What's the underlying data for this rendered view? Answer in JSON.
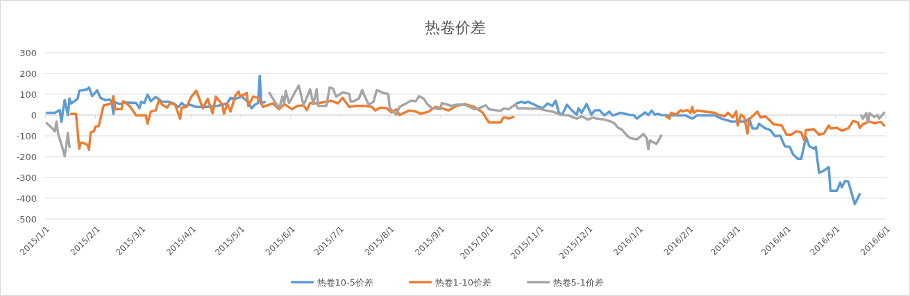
{
  "chart_data": {
    "type": "line",
    "title": "热卷价差",
    "grid": "y",
    "legend": "bottom",
    "line_style": "solid",
    "marker": "none",
    "xlim": [
      "2015-01-01",
      "2016-06-01"
    ],
    "xticks": [
      {
        "value": "2015-01-01",
        "label": "2015/1/1"
      },
      {
        "value": "2015-02-01",
        "label": "2015/2/1"
      },
      {
        "value": "2015-03-01",
        "label": "2015/3/1"
      },
      {
        "value": "2015-04-01",
        "label": "2015/4/1"
      },
      {
        "value": "2015-05-01",
        "label": "2015/5/1"
      },
      {
        "value": "2015-06-01",
        "label": "2015/6/1"
      },
      {
        "value": "2015-07-01",
        "label": "2015/7/1"
      },
      {
        "value": "2015-08-01",
        "label": "2015/8/1"
      },
      {
        "value": "2015-09-01",
        "label": "2015/9/1"
      },
      {
        "value": "2015-10-01",
        "label": "2015/10/1"
      },
      {
        "value": "2015-11-01",
        "label": "2015/11/1"
      },
      {
        "value": "2015-12-01",
        "label": "2015/12/1"
      },
      {
        "value": "2016-01-01",
        "label": "2016/1/1"
      },
      {
        "value": "2016-02-01",
        "label": "2016/2/1"
      },
      {
        "value": "2016-03-01",
        "label": "2016/3/1"
      },
      {
        "value": "2016-04-01",
        "label": "2016/4/1"
      },
      {
        "value": "2016-05-01",
        "label": "2016/5/1"
      },
      {
        "value": "2016-06-01",
        "label": "2016/6/1"
      }
    ],
    "ylim": [
      -500,
      300
    ],
    "yticks": [
      -500,
      -400,
      -300,
      -200,
      -100,
      0,
      100,
      200,
      300
    ],
    "series": [
      {
        "name": "热卷10-5价差",
        "color": "#5b9bd5",
        "x": [
          "2015-01-02",
          "2015-01-07",
          "2015-01-10",
          "2015-01-11",
          "2015-01-13",
          "2015-01-15",
          "2015-01-16",
          "2015-01-17",
          "2015-01-21",
          "2015-01-22",
          "2015-01-24",
          "2015-01-27",
          "2015-01-28",
          "2015-01-30",
          "2015-02-02",
          "2015-02-04",
          "2015-02-07",
          "2015-02-10",
          "2015-02-11",
          "2015-02-12",
          "2015-02-13",
          "2015-02-16",
          "2015-02-19",
          "2015-02-26",
          "2015-02-28",
          "2015-03-01",
          "2015-03-03",
          "2015-03-05",
          "2015-03-07",
          "2015-03-10",
          "2015-03-14",
          "2015-03-18",
          "2015-03-21",
          "2015-03-24",
          "2015-03-26",
          "2015-03-28",
          "2015-03-31",
          "2015-04-04",
          "2015-04-10",
          "2015-04-17",
          "2015-04-23",
          "2015-04-25",
          "2015-04-28",
          "2015-05-02",
          "2015-05-06",
          "2015-05-08",
          "2015-05-10",
          "2015-05-12",
          "2015-05-13",
          "2015-05-14",
          "2015-05-16",
          "2015-07-01",
          "2015-10-18",
          "2015-10-21",
          "2015-10-23",
          "2015-10-25",
          "2015-10-29",
          "2015-11-01",
          "2015-11-03",
          "2015-11-06",
          "2015-11-09",
          "2015-11-11",
          "2015-11-13",
          "2015-11-15",
          "2015-11-18",
          "2015-11-21",
          "2015-11-24",
          "2015-11-25",
          "2015-11-27",
          "2015-11-30",
          "2015-12-03",
          "2015-12-05",
          "2015-12-08",
          "2015-12-11",
          "2015-12-14",
          "2015-12-16",
          "2015-12-21",
          "2015-12-26",
          "2015-12-29",
          "2015-12-31",
          "2016-01-05",
          "2016-01-07",
          "2016-01-09",
          "2016-01-11",
          "2016-01-13",
          "2016-01-15",
          "2016-01-24",
          "2016-01-30",
          "2016-02-03",
          "2016-02-06",
          "2016-02-17",
          "2016-02-21",
          "2016-02-27",
          "2016-03-07",
          "2016-03-09",
          "2016-03-11",
          "2016-03-14",
          "2016-03-15",
          "2016-03-19",
          "2016-03-22",
          "2016-03-25",
          "2016-03-28",
          "2016-03-31",
          "2016-04-03",
          "2016-04-05",
          "2016-04-08",
          "2016-04-10",
          "2016-04-13",
          "2016-04-15",
          "2016-04-18",
          "2016-04-19",
          "2016-04-21",
          "2016-04-24",
          "2016-04-27",
          "2016-04-28",
          "2016-05-02",
          "2016-05-04",
          "2016-05-05",
          "2016-05-07",
          "2016-05-09",
          "2016-05-13",
          "2016-05-16"
        ],
        "values": [
          11,
          11,
          24,
          -33,
          72,
          0,
          80,
          56,
          78,
          117,
          120,
          124,
          133,
          91,
          120,
          83,
          72,
          74,
          61,
          6,
          61,
          53,
          61,
          58,
          33,
          64,
          58,
          98,
          67,
          87,
          64,
          64,
          56,
          39,
          58,
          44,
          50,
          39,
          39,
          44,
          56,
          83,
          78,
          89,
          61,
          33,
          50,
          58,
          189,
          58,
          62,
          null,
          56,
          64,
          58,
          64,
          50,
          39,
          33,
          56,
          44,
          69,
          11,
          2,
          50,
          22,
          2,
          33,
          11,
          53,
          2,
          22,
          24,
          -2,
          17,
          -2,
          11,
          2,
          0,
          -17,
          13,
          0,
          22,
          2,
          6,
          0,
          -2,
          -2,
          -17,
          -2,
          -2,
          -17,
          -31,
          -31,
          -17,
          -64,
          -64,
          -42,
          -64,
          -72,
          -102,
          -98,
          -150,
          -153,
          -189,
          -211,
          -211,
          -106,
          -150,
          -161,
          -153,
          -278,
          -267,
          -250,
          -364,
          -364,
          -324,
          -347,
          -317,
          -320,
          -428,
          -380
        ]
      },
      {
        "name": "热卷1-10价差",
        "color": "#ed7d31",
        "x": [
          "2015-01-17",
          "2015-01-20",
          "2015-01-22",
          "2015-01-23",
          "2015-01-24",
          "2015-01-27",
          "2015-01-28",
          "2015-01-29",
          "2015-01-31",
          "2015-02-01",
          "2015-02-03",
          "2015-02-06",
          "2015-02-08",
          "2015-02-11",
          "2015-02-12",
          "2015-02-13",
          "2015-02-17",
          "2015-02-18",
          "2015-02-22",
          "2015-02-26",
          "2015-03-04",
          "2015-03-05",
          "2015-03-07",
          "2015-03-10",
          "2015-03-12",
          "2015-03-14",
          "2015-03-17",
          "2015-03-19",
          "2015-03-22",
          "2015-03-25",
          "2015-03-26",
          "2015-03-29",
          "2015-04-01",
          "2015-04-04",
          "2015-04-08",
          "2015-04-11",
          "2015-04-14",
          "2015-04-16",
          "2015-04-20",
          "2015-04-21",
          "2015-04-23",
          "2015-04-25",
          "2015-04-28",
          "2015-04-30",
          "2015-05-01",
          "2015-05-05",
          "2015-05-06",
          "2015-05-09",
          "2015-05-12",
          "2015-05-15",
          "2015-05-21",
          "2015-05-25",
          "2015-05-28",
          "2015-06-02",
          "2015-06-05",
          "2015-06-09",
          "2015-06-11",
          "2015-06-13",
          "2015-06-17",
          "2015-06-23",
          "2015-06-26",
          "2015-06-30",
          "2015-07-03",
          "2015-07-07",
          "2015-07-11",
          "2015-07-17",
          "2015-07-21",
          "2015-07-23",
          "2015-07-26",
          "2015-07-30",
          "2015-08-02",
          "2015-08-05",
          "2015-08-07",
          "2015-08-13",
          "2015-08-17",
          "2015-08-20",
          "2015-08-25",
          "2015-08-29",
          "2015-09-02",
          "2015-09-06",
          "2015-09-11",
          "2015-09-16",
          "2015-09-22",
          "2015-09-27",
          "2015-10-01",
          "2015-10-08",
          "2015-10-10",
          "2015-10-11",
          "2015-10-13",
          "2015-10-16",
          "2015-12-01",
          "2016-01-18",
          "2016-01-20",
          "2016-01-21",
          "2016-01-24",
          "2016-01-27",
          "2016-01-28",
          "2016-01-31",
          "2016-02-02",
          "2016-02-03",
          "2016-02-04",
          "2016-02-06",
          "2016-02-17",
          "2016-02-19",
          "2016-02-23",
          "2016-02-25",
          "2016-02-28",
          "2016-03-01",
          "2016-03-02",
          "2016-03-04",
          "2016-03-06",
          "2016-03-08",
          "2016-03-09",
          "2016-03-14",
          "2016-03-16",
          "2016-03-19",
          "2016-03-21",
          "2016-03-24",
          "2016-03-29",
          "2016-04-01",
          "2016-04-04",
          "2016-04-07",
          "2016-04-10",
          "2016-04-12",
          "2016-04-13",
          "2016-04-18",
          "2016-04-21",
          "2016-04-24",
          "2016-04-27",
          "2016-04-28",
          "2016-05-02",
          "2016-05-05",
          "2016-05-09",
          "2016-05-12",
          "2016-05-15",
          "2016-05-16",
          "2016-05-18",
          "2016-05-22",
          "2016-05-25",
          "2016-05-29",
          "2016-05-31"
        ],
        "values": [
          6,
          6,
          -161,
          -133,
          -133,
          -142,
          -167,
          -83,
          -78,
          -56,
          -53,
          47,
          50,
          56,
          91,
          28,
          28,
          67,
          44,
          -2,
          -2,
          -42,
          17,
          22,
          72,
          50,
          36,
          58,
          50,
          -17,
          36,
          39,
          89,
          117,
          33,
          78,
          9,
          89,
          50,
          6,
          56,
          17,
          94,
          113,
          89,
          106,
          44,
          89,
          83,
          39,
          56,
          28,
          53,
          28,
          44,
          47,
          24,
          58,
          56,
          64,
          69,
          56,
          83,
          39,
          44,
          44,
          39,
          22,
          36,
          33,
          13,
          28,
          0,
          22,
          17,
          6,
          17,
          39,
          33,
          22,
          44,
          53,
          39,
          13,
          -36,
          -36,
          -11,
          -11,
          -17,
          -9,
          null,
          -6,
          -17,
          11,
          2,
          24,
          17,
          24,
          11,
          39,
          11,
          22,
          11,
          2,
          -6,
          11,
          -11,
          17,
          -50,
          2,
          -11,
          -89,
          -22,
          17,
          -11,
          -6,
          -20,
          -44,
          -50,
          -94,
          -94,
          -78,
          -83,
          -122,
          -72,
          -69,
          -94,
          -89,
          -50,
          -64,
          -61,
          -75,
          -64,
          -28,
          -36,
          -61,
          -44,
          -31,
          -39,
          -33,
          -50
        ]
      },
      {
        "name": "热卷5-1价差",
        "color": "#a5a5a5",
        "x": [
          "2015-01-02",
          "2015-01-05",
          "2015-01-07",
          "2015-01-08",
          "2015-01-09",
          "2015-01-12",
          "2015-01-13",
          "2015-01-14",
          "2015-01-15",
          "2015-01-16",
          "2015-03-01",
          "2015-05-19",
          "2015-05-22",
          "2015-05-25",
          "2015-05-27",
          "2015-05-28",
          "2015-05-29",
          "2015-05-31",
          "2015-06-03",
          "2015-06-06",
          "2015-06-09",
          "2015-06-13",
          "2015-06-15",
          "2015-06-17",
          "2015-06-18",
          "2015-06-23",
          "2015-06-25",
          "2015-06-27",
          "2015-06-29",
          "2015-07-01",
          "2015-07-03",
          "2015-07-07",
          "2015-07-08",
          "2015-07-10",
          "2015-07-13",
          "2015-07-15",
          "2015-07-17",
          "2015-07-19",
          "2015-07-22",
          "2015-07-24",
          "2015-07-28",
          "2015-07-31",
          "2015-08-01",
          "2015-08-05",
          "2015-08-07",
          "2015-08-11",
          "2015-08-14",
          "2015-08-17",
          "2015-08-19",
          "2015-08-22",
          "2015-08-24",
          "2015-08-27",
          "2015-09-01",
          "2015-09-02",
          "2015-09-08",
          "2015-09-11",
          "2015-09-16",
          "2015-09-22",
          "2015-09-25",
          "2015-09-29",
          "2015-10-01",
          "2015-10-08",
          "2015-10-10",
          "2015-10-11",
          "2015-10-13",
          "2015-10-17",
          "2015-10-19",
          "2015-10-22",
          "2015-10-25",
          "2015-10-28",
          "2015-11-01",
          "2015-11-05",
          "2015-11-09",
          "2015-11-14",
          "2015-11-19",
          "2015-11-24",
          "2015-11-27",
          "2015-12-01",
          "2015-12-04",
          "2015-12-06",
          "2015-12-11",
          "2015-12-14",
          "2015-12-17",
          "2015-12-19",
          "2015-12-22",
          "2015-12-25",
          "2015-12-27",
          "2015-12-31",
          "2016-01-04",
          "2016-01-06",
          "2016-01-07",
          "2016-01-08",
          "2016-01-12",
          "2016-01-15",
          "2016-03-01",
          "2016-05-17",
          "2016-05-18",
          "2016-05-20",
          "2016-05-21",
          "2016-05-22",
          "2016-05-25",
          "2016-05-27",
          "2016-05-28",
          "2016-05-31"
        ],
        "values": [
          -39,
          -61,
          -78,
          -31,
          -89,
          -167,
          -198,
          -150,
          -87,
          -153,
          null,
          106,
          67,
          33,
          89,
          56,
          117,
          58,
          100,
          142,
          47,
          124,
          53,
          124,
          44,
          44,
          133,
          128,
          89,
          98,
          109,
          102,
          64,
          67,
          80,
          120,
          83,
          50,
          64,
          120,
          106,
          102,
          33,
          2,
          39,
          56,
          69,
          67,
          91,
          78,
          53,
          33,
          28,
          58,
          44,
          50,
          50,
          28,
          33,
          47,
          28,
          20,
          31,
          31,
          28,
          50,
          31,
          33,
          31,
          31,
          31,
          22,
          17,
          2,
          -2,
          -17,
          -6,
          -22,
          -11,
          -17,
          -22,
          -28,
          -39,
          -58,
          -72,
          -100,
          -111,
          -117,
          -91,
          -111,
          -164,
          -122,
          -139,
          -98,
          null,
          -2,
          -17,
          9,
          -36,
          9,
          -9,
          0,
          -17,
          11
        ]
      }
    ]
  }
}
